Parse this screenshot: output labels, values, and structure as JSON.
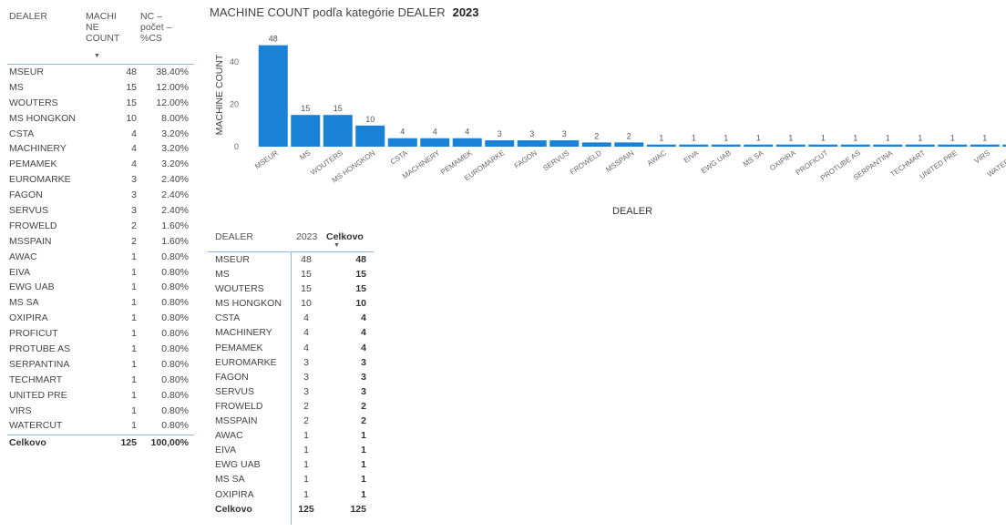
{
  "left_table": {
    "headers": {
      "dealer": "DEALER",
      "count": "MACHI\nNE\nCOUNT",
      "pct": "NC –\npočet –\n%CS"
    },
    "rows": [
      {
        "dealer": "MSEUR",
        "count": "48",
        "pct": "38.40%"
      },
      {
        "dealer": "MS",
        "count": "15",
        "pct": "12.00%"
      },
      {
        "dealer": "WOUTERS",
        "count": "15",
        "pct": "12.00%"
      },
      {
        "dealer": "MS HONGKON",
        "count": "10",
        "pct": "8.00%"
      },
      {
        "dealer": "CSTA",
        "count": "4",
        "pct": "3.20%"
      },
      {
        "dealer": "MACHINERY",
        "count": "4",
        "pct": "3.20%"
      },
      {
        "dealer": "PEMAMEK",
        "count": "4",
        "pct": "3.20%"
      },
      {
        "dealer": "EUROMARKE",
        "count": "3",
        "pct": "2.40%"
      },
      {
        "dealer": "FAGON",
        "count": "3",
        "pct": "2.40%"
      },
      {
        "dealer": "SERVUS",
        "count": "3",
        "pct": "2.40%"
      },
      {
        "dealer": "FROWELD",
        "count": "2",
        "pct": "1.60%"
      },
      {
        "dealer": "MSSPAIN",
        "count": "2",
        "pct": "1.60%"
      },
      {
        "dealer": "AWAC",
        "count": "1",
        "pct": "0.80%"
      },
      {
        "dealer": "EIVA",
        "count": "1",
        "pct": "0.80%"
      },
      {
        "dealer": "EWG UAB",
        "count": "1",
        "pct": "0.80%"
      },
      {
        "dealer": "MS SA",
        "count": "1",
        "pct": "0.80%"
      },
      {
        "dealer": "OXIPIRA",
        "count": "1",
        "pct": "0.80%"
      },
      {
        "dealer": "PROFICUT",
        "count": "1",
        "pct": "0.80%"
      },
      {
        "dealer": "PROTUBE AS",
        "count": "1",
        "pct": "0.80%"
      },
      {
        "dealer": "SERPANTINA",
        "count": "1",
        "pct": "0.80%"
      },
      {
        "dealer": "TECHMART",
        "count": "1",
        "pct": "0.80%"
      },
      {
        "dealer": "UNITED PRE",
        "count": "1",
        "pct": "0.80%"
      },
      {
        "dealer": "VIRS",
        "count": "1",
        "pct": "0.80%"
      },
      {
        "dealer": "WATERCUT",
        "count": "1",
        "pct": "0.80%"
      }
    ],
    "total": {
      "label": "Celkovo",
      "count": "125",
      "pct": "100,00%"
    }
  },
  "chart_data": {
    "type": "bar",
    "title": "MACHINE COUNT podľa kategórie DEALER",
    "title_year": "2023",
    "xlabel": "DEALER",
    "ylabel": "MACHINE COUNT",
    "y_ticks": [
      "0",
      "20",
      "40"
    ],
    "ylim": [
      0,
      50
    ],
    "grid": false,
    "categories": [
      "MSEUR",
      "MS",
      "WOUTERS",
      "MS HONGKON",
      "CSTA",
      "MACHINERY",
      "PEMAMEK",
      "EUROMARKE",
      "FAGON",
      "SERVUS",
      "FROWELD",
      "MSSPAIN",
      "AWAC",
      "EIVA",
      "EWG UAB",
      "MS SA",
      "OXIPIRA",
      "PROFICUT",
      "PROTUBE AS",
      "SERPANTINA",
      "TECHMART",
      "UNITED PRE",
      "VIRS",
      "WATERCUT"
    ],
    "values": [
      48,
      15,
      15,
      10,
      4,
      4,
      4,
      3,
      3,
      3,
      2,
      2,
      1,
      1,
      1,
      1,
      1,
      1,
      1,
      1,
      1,
      1,
      1,
      1
    ],
    "bar_color": "#1a82d6"
  },
  "right_table": {
    "headers": {
      "dealer": "DEALER",
      "year": "2023",
      "total": "Celkovo"
    },
    "rows": [
      {
        "dealer": "MSEUR",
        "year": "48",
        "total": "48"
      },
      {
        "dealer": "MS",
        "year": "15",
        "total": "15"
      },
      {
        "dealer": "WOUTERS",
        "year": "15",
        "total": "15"
      },
      {
        "dealer": "MS HONGKON",
        "year": "10",
        "total": "10"
      },
      {
        "dealer": "CSTA",
        "year": "4",
        "total": "4"
      },
      {
        "dealer": "MACHINERY",
        "year": "4",
        "total": "4"
      },
      {
        "dealer": "PEMAMEK",
        "year": "4",
        "total": "4"
      },
      {
        "dealer": "EUROMARKE",
        "year": "3",
        "total": "3"
      },
      {
        "dealer": "FAGON",
        "year": "3",
        "total": "3"
      },
      {
        "dealer": "SERVUS",
        "year": "3",
        "total": "3"
      },
      {
        "dealer": "FROWELD",
        "year": "2",
        "total": "2"
      },
      {
        "dealer": "MSSPAIN",
        "year": "2",
        "total": "2"
      },
      {
        "dealer": "AWAC",
        "year": "1",
        "total": "1"
      },
      {
        "dealer": "EIVA",
        "year": "1",
        "total": "1"
      },
      {
        "dealer": "EWG UAB",
        "year": "1",
        "total": "1"
      },
      {
        "dealer": "MS SA",
        "year": "1",
        "total": "1"
      },
      {
        "dealer": "OXIPIRA",
        "year": "1",
        "total": "1"
      }
    ],
    "total": {
      "label": "Celkovo",
      "year": "125",
      "total": "125"
    }
  },
  "colors": {
    "accent": "#1a82d6",
    "divider": "#8db7dd"
  }
}
